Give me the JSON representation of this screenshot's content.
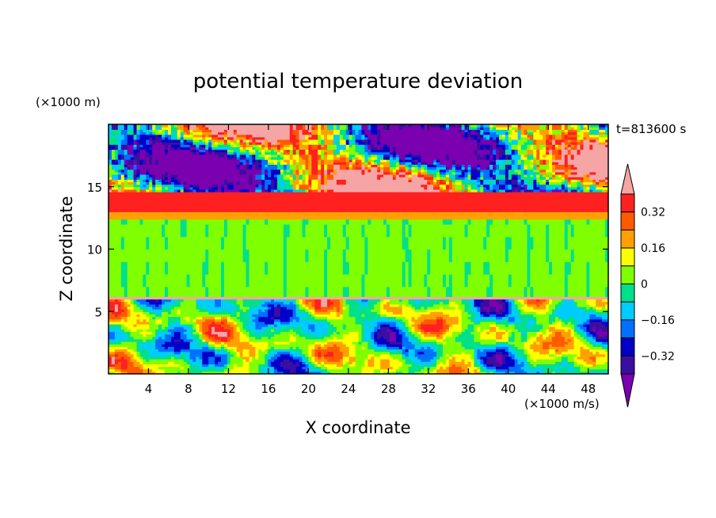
{
  "chart_data": {
    "type": "heatmap",
    "title": "potential temperature deviation",
    "xlabel": "X coordinate",
    "ylabel": "Z coordinate",
    "x_unit": "(×1000 m/s)",
    "y_unit": "(×1000 m)",
    "time_label": "t=813600 s",
    "xlim": [
      0,
      50
    ],
    "ylim": [
      0,
      20
    ],
    "x_ticks": [
      4,
      8,
      12,
      16,
      20,
      24,
      28,
      32,
      36,
      40,
      44,
      48
    ],
    "y_ticks": [
      5,
      10,
      15
    ],
    "colorbar": {
      "levels": [
        -0.4,
        -0.32,
        -0.24,
        -0.16,
        -0.08,
        0,
        0.08,
        0.16,
        0.24,
        0.32,
        0.4
      ],
      "tick_labels": [
        "0.32",
        "0.16",
        "0",
        "−0.16",
        "−0.32"
      ],
      "tick_values": [
        0.32,
        0.16,
        0,
        -0.16,
        -0.32
      ],
      "colors": [
        "#7a00b0",
        "#3a0fa0",
        "#0000c8",
        "#0070ff",
        "#00ccff",
        "#00e08a",
        "#80ff00",
        "#ffff00",
        "#ffa000",
        "#ff5a00",
        "#ff2020",
        "#f6a5a5"
      ],
      "extend": "both"
    },
    "layers": [
      {
        "zmin": 0.0,
        "zmax": 6.0,
        "description_value": "mixed, range -0.4..0.4"
      },
      {
        "zmin": 6.0,
        "zmax": 12.5,
        "value": 0.04
      },
      {
        "zmin": 12.5,
        "zmax": 14.5,
        "value": 0.3
      },
      {
        "zmin": 14.5,
        "zmax": 20.0,
        "value_range": [
          -0.4,
          0.4
        ]
      }
    ]
  }
}
